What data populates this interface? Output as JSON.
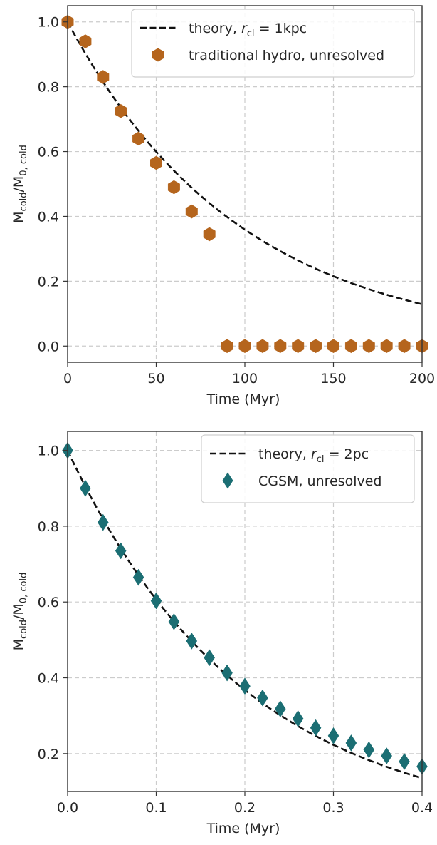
{
  "chart_data": [
    {
      "type": "scatter",
      "xlabel": "Time (Myr)",
      "ylabel": {
        "main": "M",
        "sub": "cold",
        "sep": "/M",
        "sub2": "0, cold"
      },
      "xlim": [
        0,
        200
      ],
      "ylim": [
        -0.05,
        1.05
      ],
      "xticks": [
        0,
        50,
        100,
        150,
        200
      ],
      "xtick_labels": [
        "0",
        "50",
        "100",
        "150",
        "200"
      ],
      "yticks": [
        0.0,
        0.2,
        0.4,
        0.6,
        0.8,
        1.0
      ],
      "ytick_labels": [
        "0.0",
        "0.2",
        "0.4",
        "0.6",
        "0.8",
        "1.0"
      ],
      "grid": true,
      "legend_position": "top-right",
      "theory": {
        "label_pre": "theory, ",
        "label_math": "r",
        "label_sub": "cl",
        "label_post": " = 1kpc",
        "tau": 97.7
      },
      "series": [
        {
          "name": "traditional hydro, unresolved",
          "marker": "hexagon",
          "color": "#b5651d",
          "x": [
            0,
            10,
            20,
            30,
            40,
            50,
            60,
            70,
            80,
            90,
            100,
            110,
            120,
            130,
            140,
            150,
            160,
            170,
            180,
            190,
            200
          ],
          "y": [
            1.0,
            0.94,
            0.83,
            0.725,
            0.64,
            0.565,
            0.49,
            0.415,
            0.345,
            0,
            0,
            0,
            0,
            0,
            0,
            0,
            0,
            0,
            0,
            0,
            0
          ]
        }
      ]
    },
    {
      "type": "scatter",
      "xlabel": "Time (Myr)",
      "ylabel": {
        "main": "M",
        "sub": "cold",
        "sep": "/M",
        "sub2": "0, cold"
      },
      "xlim": [
        0,
        0.4
      ],
      "ylim": [
        0.1,
        1.05
      ],
      "xticks": [
        0.0,
        0.1,
        0.2,
        0.3,
        0.4
      ],
      "xtick_labels": [
        "0.0",
        "0.1",
        "0.2",
        "0.3",
        "0.4"
      ],
      "yticks": [
        0.2,
        0.4,
        0.6,
        0.8,
        1.0
      ],
      "ytick_labels": [
        "0.2",
        "0.4",
        "0.6",
        "0.8",
        "1.0"
      ],
      "grid": true,
      "legend_position": "top-right",
      "theory": {
        "label_pre": "theory, ",
        "label_math": "r",
        "label_sub": "cl",
        "label_post": " = 2pc",
        "tau": 0.2
      },
      "series": [
        {
          "name": "CGSM, unresolved",
          "marker": "diamond",
          "color": "#1b6e73",
          "x": [
            0,
            0.02,
            0.04,
            0.06,
            0.08,
            0.1,
            0.12,
            0.14,
            0.16,
            0.18,
            0.2,
            0.22,
            0.24,
            0.26,
            0.28,
            0.3,
            0.32,
            0.34,
            0.36,
            0.38,
            0.4
          ],
          "y": [
            1.0,
            0.9,
            0.81,
            0.735,
            0.665,
            0.603,
            0.548,
            0.497,
            0.453,
            0.413,
            0.378,
            0.347,
            0.318,
            0.292,
            0.268,
            0.247,
            0.228,
            0.21,
            0.194,
            0.179,
            0.166
          ]
        }
      ]
    }
  ]
}
